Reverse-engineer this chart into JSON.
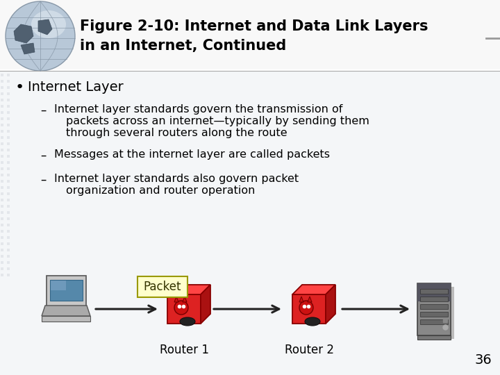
{
  "title_line1": "Figure 2-10: Internet and Data Link Layers",
  "title_line2": "in an Internet, Continued",
  "bullet": "Internet Layer",
  "sub1_line1": "Internet layer standards govern the transmission of",
  "sub1_line2": "packets across an internet—typically by sending them",
  "sub1_line3": "through several routers along the route",
  "sub2": "Messages at the internet layer are called packets",
  "sub3_line1": "Internet layer standards also govern packet",
  "sub3_line2": "organization and router operation",
  "packet_label": "Packet",
  "router1_label": "Router 1",
  "router2_label": "Router 2",
  "page_number": "36",
  "bg_color": "#ffffff",
  "body_bg": "#f0f2f5",
  "title_bg": "#ffffff",
  "title_color": "#000000",
  "text_color": "#000000",
  "packet_box_color": "#ffffcc",
  "packet_box_edge": "#999900",
  "arrow_color": "#222222",
  "grid_color": "#d0d4da",
  "globe_base": "#c8d0dc",
  "globe_land": "#7a8a9a"
}
